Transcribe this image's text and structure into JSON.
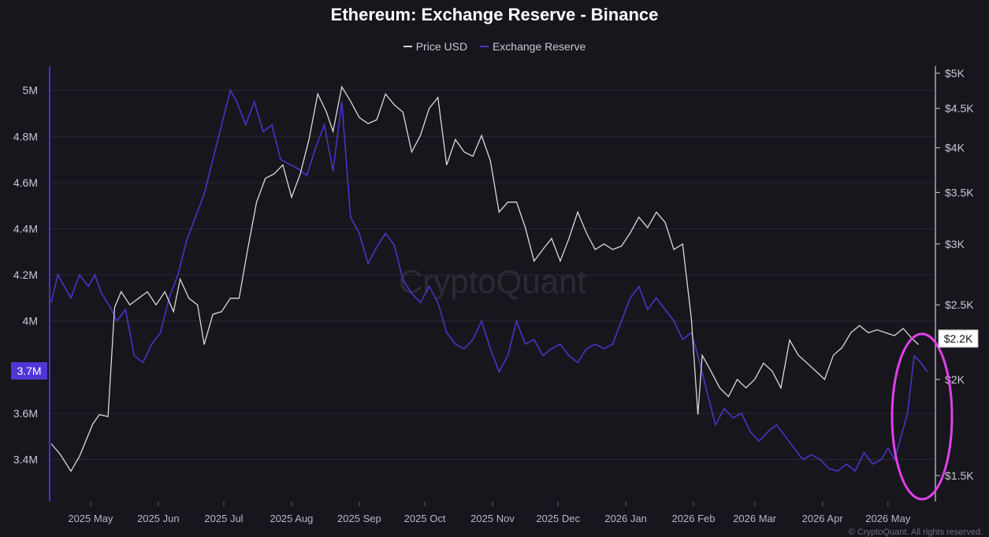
{
  "page": {
    "footer": "© CryptoQuant. All rights reserved."
  },
  "colors": {
    "background": "#17161c",
    "price": "#d9d9d9",
    "reserve": "#4b32c8",
    "reserve_badge": "#5036d6",
    "highlight": "#e040e8",
    "grid": "#2a2934"
  },
  "chart_data": {
    "type": "line",
    "title": "Ethereum: Exchange Reserve - Binance",
    "watermark": "CryptoQuant",
    "legend": [
      "Price USD",
      "Exchange Reserve"
    ],
    "legend_position": "top-center",
    "x_labels": [
      "2025 May",
      "2025 Jun",
      "2025 Jul",
      "2025 Aug",
      "2025 Sep",
      "2025 Oct",
      "2025 Nov",
      "2025 Dec",
      "2026 Jan",
      "2026 Feb",
      "2026 Mar",
      "2026 Apr",
      "2026 May"
    ],
    "x_range": [
      "2025-04-13",
      "2026-05-22"
    ],
    "left_axis": {
      "label": "",
      "ticks": [
        "5M",
        "4.8M",
        "4.6M",
        "4.4M",
        "4.2M",
        "4M",
        "3.6M",
        "3.4M"
      ],
      "tick_values": [
        5000000,
        4800000,
        4600000,
        4400000,
        4200000,
        4000000,
        3600000,
        3400000
      ],
      "range": [
        3320000,
        5050000
      ],
      "current_badge": "3.7M"
    },
    "right_axis": {
      "label": "",
      "scale": "log",
      "ticks": [
        "$5K",
        "$4.5K",
        "$4K",
        "$3.5K",
        "$3K",
        "$2.5K",
        "$2K",
        "$1.5K"
      ],
      "tick_values": [
        5000,
        4500,
        4000,
        3500,
        3000,
        2500,
        2000,
        1500
      ],
      "current_badge": "$2.2K"
    },
    "grid": true,
    "annotation": "magenta ellipse around recent reserve spike (May 2026)",
    "series": [
      {
        "name": "Price USD",
        "axis": "right",
        "points": [
          [
            "2025-04-13",
            1650
          ],
          [
            "2025-04-17",
            1600
          ],
          [
            "2025-04-22",
            1520
          ],
          [
            "2025-04-26",
            1590
          ],
          [
            "2025-05-02",
            1750
          ],
          [
            "2025-05-05",
            1800
          ],
          [
            "2025-05-09",
            1790
          ],
          [
            "2025-05-12",
            2480
          ],
          [
            "2025-05-15",
            2600
          ],
          [
            "2025-05-19",
            2500
          ],
          [
            "2025-05-23",
            2550
          ],
          [
            "2025-05-27",
            2600
          ],
          [
            "2025-05-31",
            2500
          ],
          [
            "2025-06-04",
            2600
          ],
          [
            "2025-06-08",
            2450
          ],
          [
            "2025-06-11",
            2700
          ],
          [
            "2025-06-15",
            2550
          ],
          [
            "2025-06-19",
            2500
          ],
          [
            "2025-06-22",
            2220
          ],
          [
            "2025-06-26",
            2430
          ],
          [
            "2025-06-30",
            2450
          ],
          [
            "2025-07-04",
            2550
          ],
          [
            "2025-07-08",
            2550
          ],
          [
            "2025-07-12",
            2960
          ],
          [
            "2025-07-16",
            3400
          ],
          [
            "2025-07-20",
            3650
          ],
          [
            "2025-07-24",
            3700
          ],
          [
            "2025-07-28",
            3800
          ],
          [
            "2025-08-01",
            3450
          ],
          [
            "2025-08-05",
            3700
          ],
          [
            "2025-08-09",
            4100
          ],
          [
            "2025-08-13",
            4700
          ],
          [
            "2025-08-17",
            4450
          ],
          [
            "2025-08-20",
            4200
          ],
          [
            "2025-08-24",
            4800
          ],
          [
            "2025-08-28",
            4600
          ],
          [
            "2025-09-01",
            4380
          ],
          [
            "2025-09-05",
            4300
          ],
          [
            "2025-09-09",
            4350
          ],
          [
            "2025-09-13",
            4700
          ],
          [
            "2025-09-17",
            4550
          ],
          [
            "2025-09-21",
            4450
          ],
          [
            "2025-09-25",
            3950
          ],
          [
            "2025-09-29",
            4150
          ],
          [
            "2025-10-03",
            4500
          ],
          [
            "2025-10-07",
            4650
          ],
          [
            "2025-10-11",
            3800
          ],
          [
            "2025-10-15",
            4100
          ],
          [
            "2025-10-19",
            3950
          ],
          [
            "2025-10-23",
            3900
          ],
          [
            "2025-10-27",
            4150
          ],
          [
            "2025-10-31",
            3850
          ],
          [
            "2025-11-04",
            3300
          ],
          [
            "2025-11-08",
            3400
          ],
          [
            "2025-11-12",
            3400
          ],
          [
            "2025-11-16",
            3150
          ],
          [
            "2025-11-20",
            2850
          ],
          [
            "2025-11-24",
            2950
          ],
          [
            "2025-11-28",
            3050
          ],
          [
            "2025-12-02",
            2850
          ],
          [
            "2025-12-06",
            3050
          ],
          [
            "2025-12-10",
            3300
          ],
          [
            "2025-12-14",
            3100
          ],
          [
            "2025-12-18",
            2950
          ],
          [
            "2025-12-22",
            3000
          ],
          [
            "2025-12-26",
            2950
          ],
          [
            "2025-12-30",
            2980
          ],
          [
            "2026-01-03",
            3100
          ],
          [
            "2026-01-07",
            3250
          ],
          [
            "2026-01-11",
            3150
          ],
          [
            "2026-01-15",
            3300
          ],
          [
            "2026-01-19",
            3200
          ],
          [
            "2026-01-23",
            2950
          ],
          [
            "2026-01-27",
            3000
          ],
          [
            "2026-01-31",
            2400
          ],
          [
            "2026-02-03",
            1800
          ],
          [
            "2026-02-05",
            2150
          ],
          [
            "2026-02-09",
            2050
          ],
          [
            "2026-02-13",
            1950
          ],
          [
            "2026-02-17",
            1900
          ],
          [
            "2026-02-21",
            2000
          ],
          [
            "2026-02-25",
            1950
          ],
          [
            "2026-03-01",
            2000
          ],
          [
            "2026-03-05",
            2100
          ],
          [
            "2026-03-09",
            2050
          ],
          [
            "2026-03-13",
            1950
          ],
          [
            "2026-03-17",
            2250
          ],
          [
            "2026-03-21",
            2150
          ],
          [
            "2026-03-25",
            2100
          ],
          [
            "2026-03-29",
            2050
          ],
          [
            "2026-04-02",
            2000
          ],
          [
            "2026-04-06",
            2150
          ],
          [
            "2026-04-10",
            2200
          ],
          [
            "2026-04-14",
            2300
          ],
          [
            "2026-04-18",
            2350
          ],
          [
            "2026-04-22",
            2300
          ],
          [
            "2026-04-26",
            2320
          ],
          [
            "2026-04-30",
            2300
          ],
          [
            "2026-05-04",
            2280
          ],
          [
            "2026-05-08",
            2330
          ],
          [
            "2026-05-12",
            2260
          ],
          [
            "2026-05-15",
            2220
          ]
        ]
      },
      {
        "name": "Exchange Reserve",
        "axis": "left",
        "points": [
          [
            "2025-04-13",
            4080000
          ],
          [
            "2025-04-16",
            4200000
          ],
          [
            "2025-04-19",
            4150000
          ],
          [
            "2025-04-22",
            4100000
          ],
          [
            "2025-04-26",
            4200000
          ],
          [
            "2025-04-30",
            4150000
          ],
          [
            "2025-05-03",
            4200000
          ],
          [
            "2025-05-06",
            4120000
          ],
          [
            "2025-05-10",
            4060000
          ],
          [
            "2025-05-13",
            4000000
          ],
          [
            "2025-05-17",
            4050000
          ],
          [
            "2025-05-21",
            3850000
          ],
          [
            "2025-05-25",
            3820000
          ],
          [
            "2025-05-29",
            3900000
          ],
          [
            "2025-06-02",
            3950000
          ],
          [
            "2025-06-06",
            4100000
          ],
          [
            "2025-06-10",
            4200000
          ],
          [
            "2025-06-14",
            4350000
          ],
          [
            "2025-06-18",
            4450000
          ],
          [
            "2025-06-22",
            4550000
          ],
          [
            "2025-06-26",
            4700000
          ],
          [
            "2025-06-30",
            4850000
          ],
          [
            "2025-07-04",
            5000000
          ],
          [
            "2025-07-07",
            4950000
          ],
          [
            "2025-07-11",
            4850000
          ],
          [
            "2025-07-15",
            4950000
          ],
          [
            "2025-07-19",
            4820000
          ],
          [
            "2025-07-23",
            4850000
          ],
          [
            "2025-07-27",
            4700000
          ],
          [
            "2025-07-31",
            4680000
          ],
          [
            "2025-08-04",
            4660000
          ],
          [
            "2025-08-08",
            4630000
          ],
          [
            "2025-08-12",
            4750000
          ],
          [
            "2025-08-16",
            4850000
          ],
          [
            "2025-08-20",
            4650000
          ],
          [
            "2025-08-24",
            4950000
          ],
          [
            "2025-08-28",
            4450000
          ],
          [
            "2025-09-01",
            4380000
          ],
          [
            "2025-09-05",
            4250000
          ],
          [
            "2025-09-09",
            4320000
          ],
          [
            "2025-09-13",
            4380000
          ],
          [
            "2025-09-17",
            4330000
          ],
          [
            "2025-09-21",
            4180000
          ],
          [
            "2025-09-25",
            4120000
          ],
          [
            "2025-09-29",
            4080000
          ],
          [
            "2025-10-03",
            4150000
          ],
          [
            "2025-10-07",
            4080000
          ],
          [
            "2025-10-11",
            3950000
          ],
          [
            "2025-10-15",
            3900000
          ],
          [
            "2025-10-19",
            3880000
          ],
          [
            "2025-10-23",
            3920000
          ],
          [
            "2025-10-27",
            4000000
          ],
          [
            "2025-10-31",
            3880000
          ],
          [
            "2025-11-04",
            3780000
          ],
          [
            "2025-11-08",
            3850000
          ],
          [
            "2025-11-12",
            4000000
          ],
          [
            "2025-11-16",
            3900000
          ],
          [
            "2025-11-20",
            3920000
          ],
          [
            "2025-11-24",
            3850000
          ],
          [
            "2025-11-28",
            3880000
          ],
          [
            "2025-12-02",
            3900000
          ],
          [
            "2025-12-06",
            3850000
          ],
          [
            "2025-12-10",
            3820000
          ],
          [
            "2025-12-14",
            3880000
          ],
          [
            "2025-12-18",
            3900000
          ],
          [
            "2025-12-22",
            3880000
          ],
          [
            "2025-12-26",
            3900000
          ],
          [
            "2025-12-30",
            4000000
          ],
          [
            "2026-01-03",
            4100000
          ],
          [
            "2026-01-07",
            4150000
          ],
          [
            "2026-01-11",
            4050000
          ],
          [
            "2026-01-15",
            4100000
          ],
          [
            "2026-01-19",
            4050000
          ],
          [
            "2026-01-23",
            4000000
          ],
          [
            "2026-01-27",
            3920000
          ],
          [
            "2026-01-31",
            3950000
          ],
          [
            "2026-02-03",
            3850000
          ],
          [
            "2026-02-07",
            3700000
          ],
          [
            "2026-02-11",
            3550000
          ],
          [
            "2026-02-15",
            3620000
          ],
          [
            "2026-02-19",
            3580000
          ],
          [
            "2026-02-23",
            3600000
          ],
          [
            "2026-02-27",
            3520000
          ],
          [
            "2026-03-03",
            3480000
          ],
          [
            "2026-03-07",
            3520000
          ],
          [
            "2026-03-11",
            3550000
          ],
          [
            "2026-03-15",
            3500000
          ],
          [
            "2026-03-19",
            3450000
          ],
          [
            "2026-03-23",
            3400000
          ],
          [
            "2026-03-27",
            3420000
          ],
          [
            "2026-03-31",
            3400000
          ],
          [
            "2026-04-04",
            3360000
          ],
          [
            "2026-04-08",
            3350000
          ],
          [
            "2026-04-12",
            3380000
          ],
          [
            "2026-04-16",
            3350000
          ],
          [
            "2026-04-20",
            3430000
          ],
          [
            "2026-04-24",
            3380000
          ],
          [
            "2026-04-28",
            3400000
          ],
          [
            "2026-05-01",
            3450000
          ],
          [
            "2026-05-04",
            3400000
          ],
          [
            "2026-05-07",
            3500000
          ],
          [
            "2026-05-10",
            3600000
          ],
          [
            "2026-05-13",
            3850000
          ],
          [
            "2026-05-16",
            3820000
          ],
          [
            "2026-05-19",
            3780000
          ]
        ]
      }
    ]
  }
}
